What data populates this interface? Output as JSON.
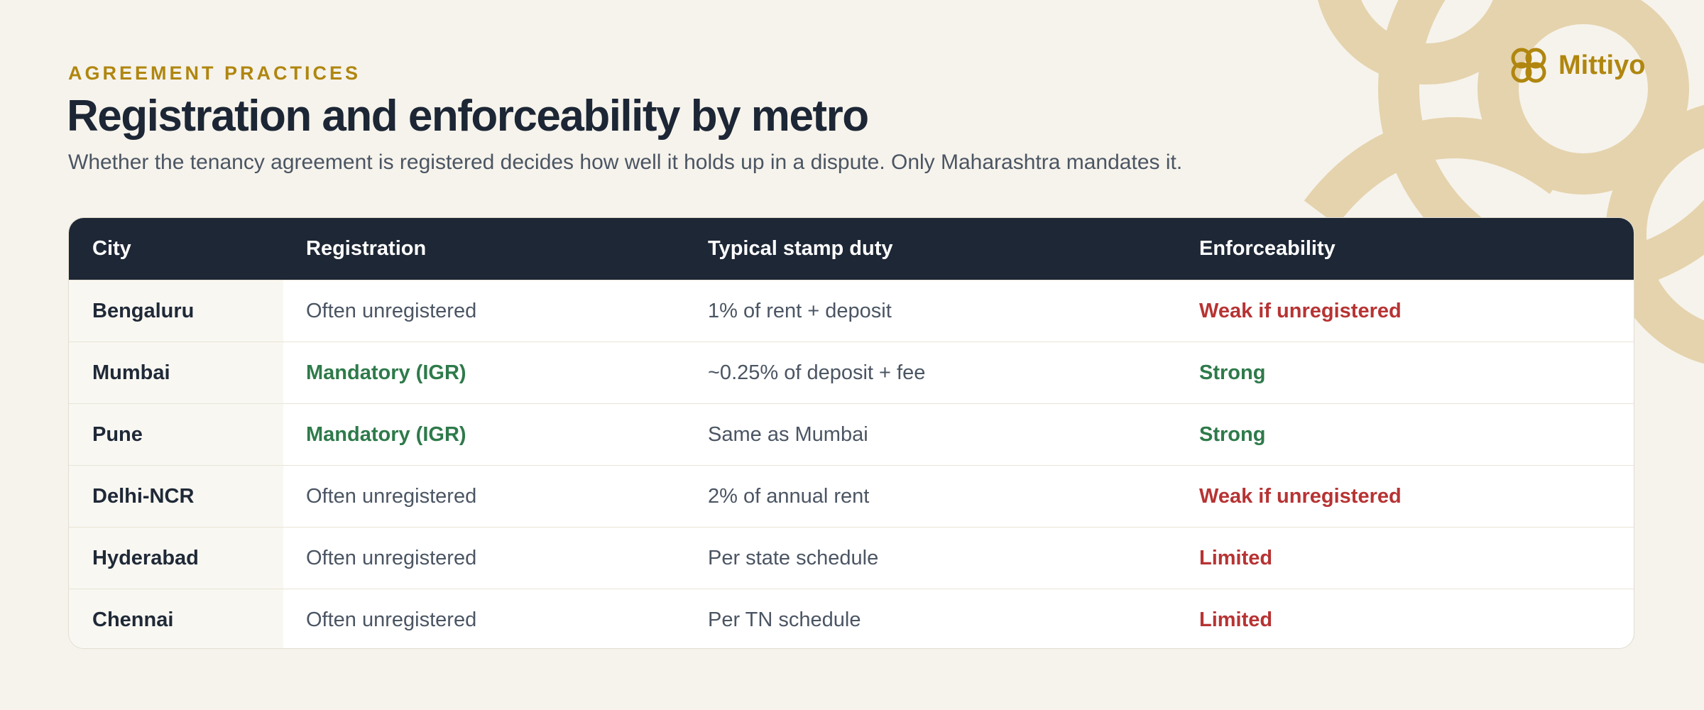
{
  "header": {
    "eyebrow": "AGREEMENT PRACTICES",
    "title": "Registration and enforceability by metro",
    "subtitle": "Whether the tenancy agreement is registered decides how well it holds up in a dispute. Only Maharashtra mandates it."
  },
  "brand": {
    "name": "Mittiyo"
  },
  "table": {
    "columns": [
      "City",
      "Registration",
      "Typical stamp duty",
      "Enforceability"
    ],
    "rows": [
      {
        "cells": [
          {
            "text": "Bengaluru"
          },
          {
            "text": "Often unregistered"
          },
          {
            "text": "1% of rent + deposit"
          },
          {
            "text": "Weak if unregistered",
            "color": "#b73333"
          }
        ]
      },
      {
        "cells": [
          {
            "text": "Mumbai"
          },
          {
            "text": "Mandatory (IGR)",
            "color": "#2e7a4a"
          },
          {
            "text": "~0.25% of deposit + fee"
          },
          {
            "text": "Strong",
            "color": "#2e7a4a"
          }
        ]
      },
      {
        "cells": [
          {
            "text": "Pune"
          },
          {
            "text": "Mandatory (IGR)",
            "color": "#2e7a4a"
          },
          {
            "text": "Same as Mumbai"
          },
          {
            "text": "Strong",
            "color": "#2e7a4a"
          }
        ]
      },
      {
        "cells": [
          {
            "text": "Delhi-NCR"
          },
          {
            "text": "Often unregistered"
          },
          {
            "text": "2% of annual rent"
          },
          {
            "text": "Weak if unregistered",
            "color": "#b73333"
          }
        ]
      },
      {
        "cells": [
          {
            "text": "Hyderabad"
          },
          {
            "text": "Often unregistered"
          },
          {
            "text": "Per state schedule"
          },
          {
            "text": "Limited",
            "color": "#b73333"
          }
        ]
      },
      {
        "cells": [
          {
            "text": "Chennai"
          },
          {
            "text": "Often unregistered"
          },
          {
            "text": "Per TN schedule"
          },
          {
            "text": "Limited",
            "color": "#b73333"
          }
        ]
      }
    ]
  }
}
